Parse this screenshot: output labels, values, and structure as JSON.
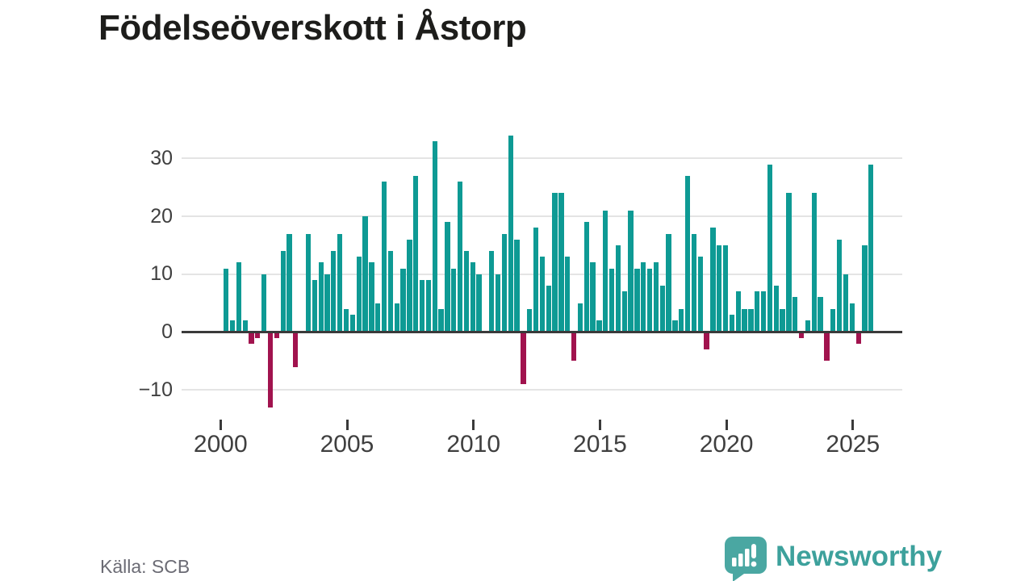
{
  "title": "Födelseöverskott i Åstorp",
  "source": "Källa: SCB",
  "branding": {
    "wordmark": "Newsworthy",
    "icon": "newsworthy-speech-bubble-bar-chart-icon"
  },
  "colors": {
    "positive_bar": "#0e9a94",
    "negative_bar": "#a1134e",
    "baseline": "#3a3a3a",
    "gridline": "#e4e4e4",
    "axis_text": "#3f3f3f",
    "title_text": "#1d1d1b",
    "source_text": "#6b6b74",
    "brand_teal": "#3da19c",
    "logo_bubble": "#4aa7a2"
  },
  "chart_data": {
    "type": "bar",
    "title": "Födelseöverskott i Åstorp",
    "xlabel": "",
    "ylabel": "",
    "x_unit": "quarter",
    "start_period": "2000Q1",
    "end_period": "2025Q3",
    "grid": true,
    "y_ticks": [
      30,
      20,
      10,
      0,
      -10
    ],
    "ylim": [
      -14,
      35.5
    ],
    "x_ticks": [
      2000,
      2005,
      2010,
      2015,
      2020,
      2025
    ],
    "values_by_year": [
      {
        "year": 2000,
        "q": [
          11,
          2,
          12,
          2
        ]
      },
      {
        "year": 2001,
        "q": [
          -2,
          -1,
          10,
          -13
        ]
      },
      {
        "year": 2002,
        "q": [
          -1,
          14,
          17,
          -6
        ]
      },
      {
        "year": 2003,
        "q": [
          0,
          17,
          9,
          12
        ]
      },
      {
        "year": 2004,
        "q": [
          10,
          14,
          17,
          4
        ]
      },
      {
        "year": 2005,
        "q": [
          3,
          13,
          20,
          12
        ]
      },
      {
        "year": 2006,
        "q": [
          5,
          26,
          14,
          5
        ]
      },
      {
        "year": 2007,
        "q": [
          11,
          16,
          27,
          9
        ]
      },
      {
        "year": 2008,
        "q": [
          9,
          33,
          4,
          19
        ]
      },
      {
        "year": 2009,
        "q": [
          11,
          26,
          14,
          12
        ]
      },
      {
        "year": 2010,
        "q": [
          10,
          0,
          14,
          10
        ]
      },
      {
        "year": 2011,
        "q": [
          17,
          34,
          16,
          -9
        ]
      },
      {
        "year": 2012,
        "q": [
          4,
          18,
          13,
          8
        ]
      },
      {
        "year": 2013,
        "q": [
          24,
          24,
          13,
          -5
        ]
      },
      {
        "year": 2014,
        "q": [
          5,
          19,
          12,
          2
        ]
      },
      {
        "year": 2015,
        "q": [
          21,
          11,
          15,
          7
        ]
      },
      {
        "year": 2016,
        "q": [
          21,
          11,
          12,
          11
        ]
      },
      {
        "year": 2017,
        "q": [
          12,
          8,
          17,
          2
        ]
      },
      {
        "year": 2018,
        "q": [
          4,
          27,
          17,
          13
        ]
      },
      {
        "year": 2019,
        "q": [
          -3,
          18,
          15,
          15
        ]
      },
      {
        "year": 2020,
        "q": [
          3,
          7,
          4,
          4
        ]
      },
      {
        "year": 2021,
        "q": [
          7,
          7,
          29,
          8
        ]
      },
      {
        "year": 2022,
        "q": [
          4,
          24,
          6,
          -1
        ]
      },
      {
        "year": 2023,
        "q": [
          2,
          24,
          6,
          -5
        ]
      },
      {
        "year": 2024,
        "q": [
          4,
          16,
          10,
          5
        ]
      },
      {
        "year": 2025,
        "q": [
          -2,
          15,
          29
        ]
      }
    ]
  }
}
